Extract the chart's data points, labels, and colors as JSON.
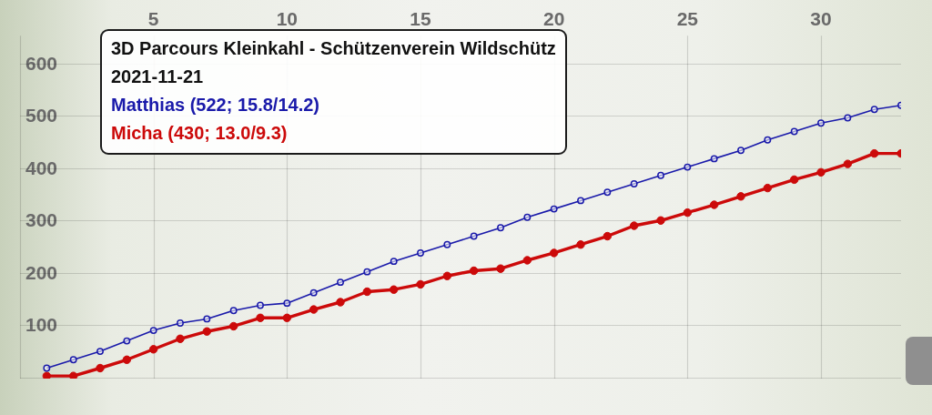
{
  "chart_data": {
    "type": "line",
    "title": "3D Parcours Kleinkahl - Schützenverein Wildschütz",
    "subtitle": "2021-11-21",
    "x": [
      1,
      2,
      3,
      4,
      5,
      6,
      7,
      8,
      9,
      10,
      11,
      12,
      13,
      14,
      15,
      16,
      17,
      18,
      19,
      20,
      21,
      22,
      23,
      24,
      25,
      26,
      27,
      28,
      29,
      30,
      31,
      32,
      33
    ],
    "series": [
      {
        "name": "Matthias (522; 15.8/14.2)",
        "color": "#1a1aaa",
        "values": [
          20,
          36,
          52,
          72,
          92,
          106,
          114,
          130,
          140,
          144,
          164,
          184,
          204,
          224,
          240,
          256,
          272,
          288,
          308,
          324,
          340,
          356,
          372,
          388,
          404,
          420,
          436,
          456,
          472,
          488,
          498,
          514,
          522
        ]
      },
      {
        "name": "Micha (430; 13.0/9.3)",
        "color": "#cc0a0a",
        "values": [
          5,
          5,
          20,
          36,
          56,
          76,
          90,
          100,
          116,
          116,
          132,
          146,
          166,
          170,
          180,
          196,
          206,
          210,
          226,
          240,
          256,
          272,
          292,
          302,
          317,
          332,
          348,
          364,
          380,
          394,
          410,
          430,
          430
        ]
      }
    ],
    "xlim": [
      0,
      33
    ],
    "xticks": [
      {
        "value": 0,
        "label": null
      },
      5,
      10,
      15,
      20,
      25,
      30
    ],
    "ylim": [
      0,
      655
    ],
    "yticks": [
      {
        "value": 0,
        "label": null
      },
      100,
      200,
      300,
      400,
      500,
      600
    ],
    "grid": true,
    "legend": "top left",
    "marker": "circle"
  }
}
